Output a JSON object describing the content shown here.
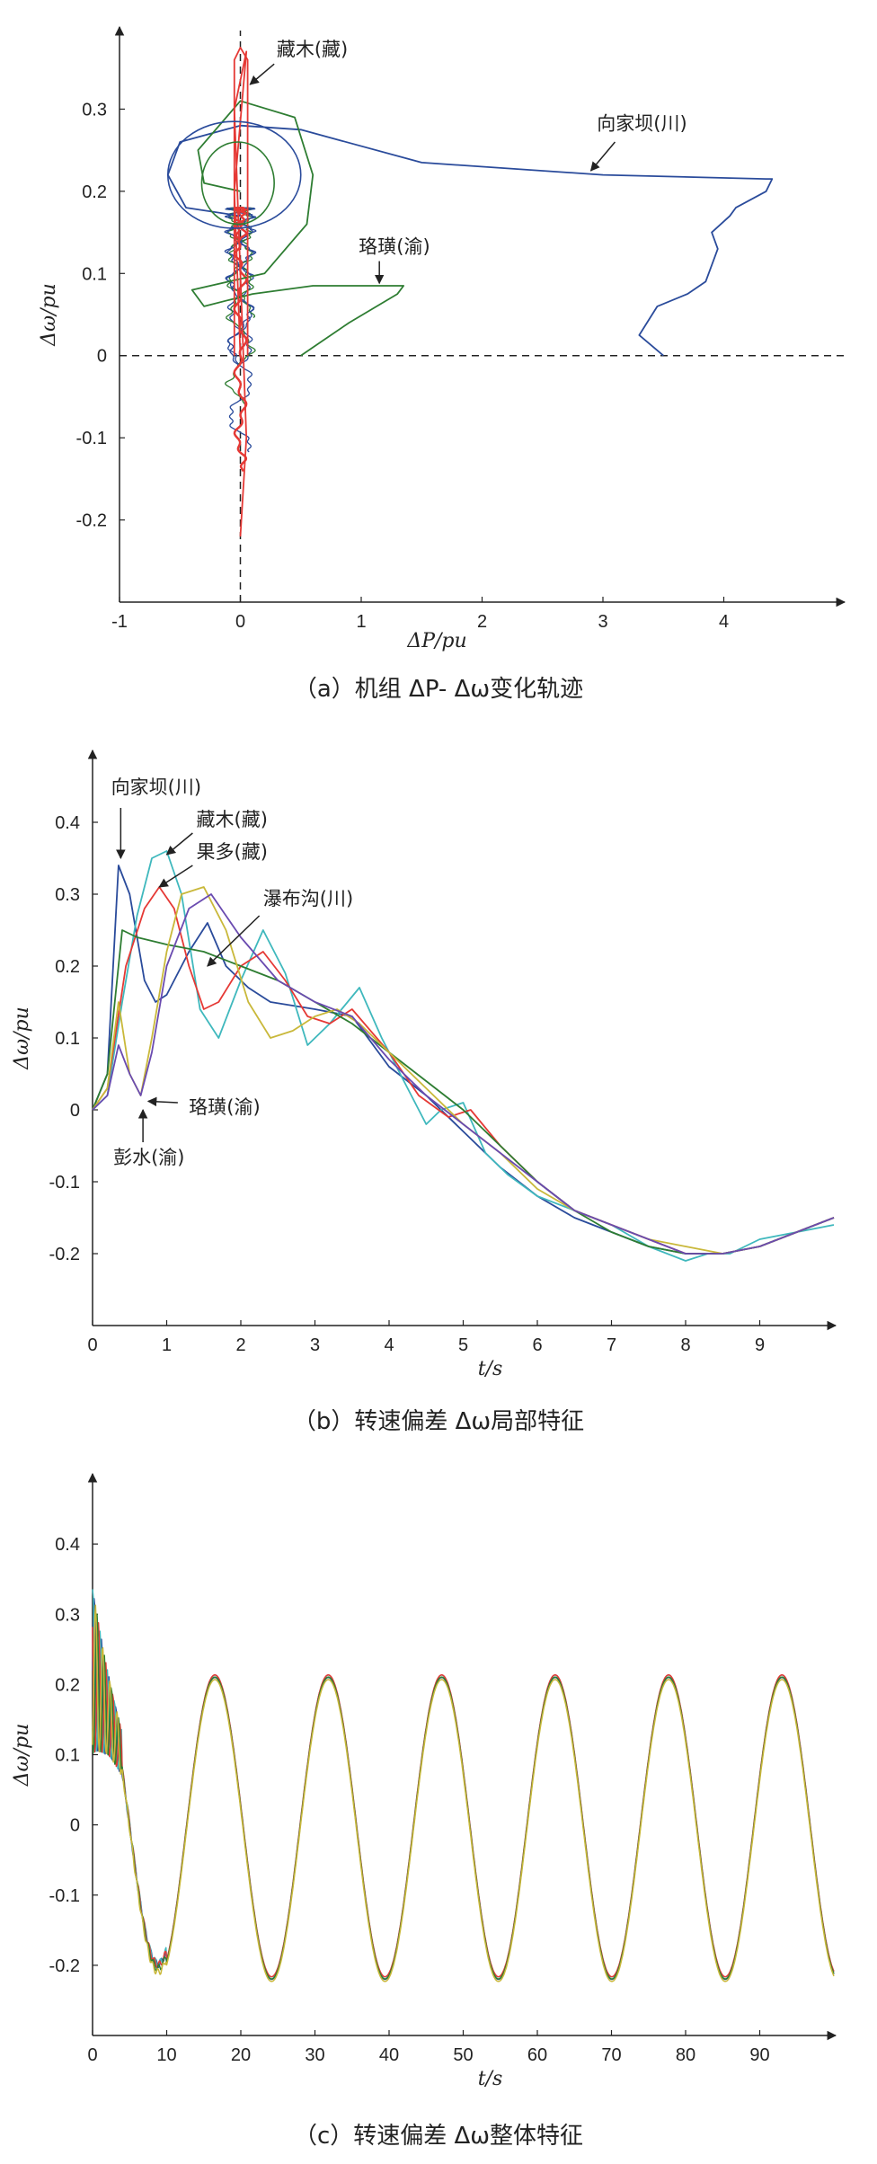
{
  "chart_data": [
    {
      "id": "a",
      "type": "line",
      "caption": "（a）机组 ΔP- Δω变化轨迹",
      "xlabel": "ΔP/pu",
      "ylabel": "Δω/pu",
      "xlim": [
        -1,
        5
      ],
      "ylim": [
        -0.3,
        0.4
      ],
      "xticks": [
        "-1",
        "0",
        "1",
        "2",
        "3",
        "4"
      ],
      "xtick_values": [
        -1,
        0,
        1,
        2,
        3,
        4
      ],
      "yticks": [
        "-0.2",
        "-0.1",
        "0",
        "0.1",
        "0.2",
        "0.3"
      ],
      "ytick_values": [
        -0.2,
        -0.1,
        0,
        0.1,
        0.2,
        0.3
      ],
      "reference_lines": [
        "x=0 dashed",
        "y=0 dashed"
      ],
      "annotations": [
        "藏木(藏)",
        "向家坝(川)",
        "珞璜(渝)"
      ],
      "series": [
        {
          "name": "向家坝(川)",
          "color": "#2a4b9b",
          "x": [
            3.5,
            3.3,
            3.45,
            3.7,
            3.85,
            3.95,
            3.9,
            4.05,
            4.1,
            4.35,
            4.4,
            4.35,
            3.0,
            1.5,
            0.5,
            0.0,
            -0.5,
            -0.6,
            -0.45,
            0.0
          ],
          "y": [
            0.0,
            0.025,
            0.06,
            0.075,
            0.09,
            0.13,
            0.15,
            0.17,
            0.18,
            0.2,
            0.215,
            0.215,
            0.22,
            0.235,
            0.275,
            0.28,
            0.26,
            0.22,
            0.18,
            0.17
          ]
        },
        {
          "name": "珞璜(渝)",
          "color": "#2e7d32",
          "x": [
            0.5,
            0.9,
            1.3,
            1.35,
            1.1,
            0.6,
            0.1,
            -0.3,
            -0.4,
            0.2,
            0.55,
            0.6,
            0.45,
            0.0,
            -0.35,
            -0.3,
            0.0
          ],
          "y": [
            0.0,
            0.04,
            0.075,
            0.085,
            0.085,
            0.085,
            0.075,
            0.06,
            0.08,
            0.1,
            0.16,
            0.22,
            0.29,
            0.31,
            0.25,
            0.21,
            0.2
          ]
        },
        {
          "name": "藏木(藏)",
          "color": "#e53935",
          "x": [
            0.0,
            -0.05,
            0.05,
            -0.05,
            0.05,
            0.0
          ],
          "y": [
            0.0,
            0.2,
            0.37,
            0.3,
            -0.1,
            -0.22
          ]
        }
      ]
    },
    {
      "id": "b",
      "type": "line",
      "caption": "（b）转速偏差 Δω局部特征",
      "xlabel": "t/s",
      "ylabel": "Δω/pu",
      "xlim": [
        0,
        10
      ],
      "ylim": [
        -0.3,
        0.5
      ],
      "xticks": [
        "0",
        "1",
        "2",
        "3",
        "4",
        "5",
        "6",
        "7",
        "8",
        "9"
      ],
      "xtick_values": [
        0,
        1,
        2,
        3,
        4,
        5,
        6,
        7,
        8,
        9
      ],
      "yticks": [
        "-0.2",
        "-0.1",
        "0",
        "0.1",
        "0.2",
        "0.3",
        "0.4"
      ],
      "ytick_values": [
        -0.2,
        -0.1,
        0,
        0.1,
        0.2,
        0.3,
        0.4
      ],
      "annotations": [
        "向家坝(川)",
        "藏木(藏)",
        "果多(藏)",
        "瀑布沟(川)",
        "珞璜(渝)",
        "彭水(渝)"
      ],
      "series": [
        {
          "name": "向家坝(川)",
          "color": "#2a4b9b",
          "x": [
            0,
            0.2,
            0.35,
            0.5,
            0.7,
            0.85,
            1.0,
            1.3,
            1.55,
            1.8,
            2.1,
            2.4,
            3.0,
            3.5,
            4.0,
            4.5,
            5.0,
            5.5,
            6.0,
            6.5,
            7.0,
            7.5,
            8.0,
            8.5,
            9.0,
            9.5,
            10
          ],
          "y": [
            0,
            0.05,
            0.34,
            0.3,
            0.18,
            0.15,
            0.16,
            0.22,
            0.26,
            0.2,
            0.17,
            0.15,
            0.14,
            0.13,
            0.06,
            0.02,
            -0.03,
            -0.08,
            -0.12,
            -0.15,
            -0.17,
            -0.19,
            -0.2,
            -0.2,
            -0.19,
            -0.17,
            -0.15
          ]
        },
        {
          "name": "藏木(藏)",
          "color": "#3fb8bd",
          "x": [
            0,
            0.2,
            0.4,
            0.6,
            0.8,
            1.0,
            1.2,
            1.45,
            1.7,
            2.0,
            2.3,
            2.6,
            2.9,
            3.2,
            3.6,
            3.9,
            4.2,
            4.5,
            4.7,
            5.0,
            5.3,
            5.6,
            6.0,
            6.5,
            7.0,
            7.5,
            8.0,
            8.3,
            8.6,
            9.0,
            9.5,
            10
          ],
          "y": [
            0,
            0.02,
            0.15,
            0.27,
            0.35,
            0.36,
            0.3,
            0.14,
            0.1,
            0.18,
            0.25,
            0.19,
            0.09,
            0.12,
            0.17,
            0.1,
            0.04,
            -0.02,
            0.0,
            0.01,
            -0.06,
            -0.09,
            -0.12,
            -0.14,
            -0.16,
            -0.19,
            -0.21,
            -0.2,
            -0.2,
            -0.18,
            -0.17,
            -0.16
          ]
        },
        {
          "name": "果多(藏)",
          "color": "#e53935",
          "x": [
            0,
            0.2,
            0.45,
            0.7,
            0.9,
            1.1,
            1.3,
            1.5,
            1.7,
            2.0,
            2.3,
            2.6,
            2.9,
            3.2,
            3.5,
            4.0,
            4.4,
            4.8,
            5.1,
            5.5,
            6.0,
            6.5,
            7.0,
            7.5,
            8.0,
            8.5,
            9.0,
            9.5,
            10
          ],
          "y": [
            0,
            0.03,
            0.2,
            0.28,
            0.31,
            0.28,
            0.2,
            0.14,
            0.15,
            0.2,
            0.22,
            0.18,
            0.13,
            0.12,
            0.14,
            0.08,
            0.02,
            -0.01,
            0.0,
            -0.05,
            -0.1,
            -0.14,
            -0.16,
            -0.18,
            -0.2,
            -0.2,
            -0.19,
            -0.17,
            -0.15
          ]
        },
        {
          "name": "瀑布沟(川)",
          "color": "#2e7d32",
          "x": [
            0,
            0.2,
            0.4,
            0.6,
            1.0,
            1.5,
            2.0,
            2.5,
            3.0,
            3.5,
            4.0,
            4.5,
            5.0,
            5.5,
            6.0,
            6.5,
            7.0,
            7.5,
            8.0,
            8.5,
            9.0,
            9.5,
            10
          ],
          "y": [
            0,
            0.05,
            0.25,
            0.24,
            0.23,
            0.22,
            0.2,
            0.18,
            0.15,
            0.12,
            0.08,
            0.04,
            0.0,
            -0.05,
            -0.1,
            -0.14,
            -0.17,
            -0.19,
            -0.2,
            -0.2,
            -0.19,
            -0.17,
            -0.15
          ]
        },
        {
          "name": "珞璜(渝)",
          "color": "#c9b83a",
          "x": [
            0,
            0.2,
            0.35,
            0.5,
            0.65,
            0.8,
            1.0,
            1.2,
            1.5,
            1.8,
            2.1,
            2.4,
            2.7,
            3.0,
            3.3,
            3.6,
            4.0,
            4.5,
            5.0,
            5.5,
            6.0,
            6.5,
            7.0,
            7.5,
            8.0,
            8.5,
            9.0,
            9.5,
            10
          ],
          "y": [
            0,
            0.03,
            0.15,
            0.05,
            0.02,
            0.1,
            0.22,
            0.3,
            0.31,
            0.25,
            0.15,
            0.1,
            0.11,
            0.13,
            0.14,
            0.12,
            0.08,
            0.03,
            -0.02,
            -0.06,
            -0.11,
            -0.14,
            -0.16,
            -0.18,
            -0.19,
            -0.2,
            -0.19,
            -0.17,
            -0.15
          ]
        },
        {
          "name": "彭水(渝)",
          "color": "#6a4bb0",
          "x": [
            0,
            0.2,
            0.35,
            0.5,
            0.65,
            0.8,
            1.0,
            1.3,
            1.6,
            2.0,
            2.5,
            3.0,
            3.5,
            4.0,
            4.5,
            5.0,
            5.5,
            6.0,
            6.5,
            7.0,
            7.5,
            8.0,
            8.5,
            9.0,
            9.5,
            10
          ],
          "y": [
            0,
            0.02,
            0.09,
            0.05,
            0.02,
            0.08,
            0.2,
            0.28,
            0.3,
            0.24,
            0.18,
            0.15,
            0.13,
            0.07,
            0.02,
            -0.02,
            -0.06,
            -0.1,
            -0.14,
            -0.16,
            -0.18,
            -0.2,
            -0.2,
            -0.19,
            -0.17,
            -0.15
          ]
        }
      ]
    },
    {
      "id": "c",
      "type": "line",
      "caption": "（c）转速偏差 Δω整体特征",
      "xlabel": "t/s",
      "ylabel": "Δω/pu",
      "xlim": [
        0,
        100
      ],
      "ylim": [
        -0.3,
        0.5
      ],
      "xticks": [
        "0",
        "10",
        "20",
        "30",
        "40",
        "50",
        "60",
        "70",
        "80",
        "90"
      ],
      "xtick_values": [
        0,
        10,
        20,
        30,
        40,
        50,
        60,
        70,
        80,
        90
      ],
      "yticks": [
        "-0.2",
        "-0.1",
        "0",
        "0.1",
        "0.2",
        "0.3",
        "0.4"
      ],
      "ytick_values": [
        -0.2,
        -0.1,
        0,
        0.1,
        0.2,
        0.3,
        0.4
      ],
      "oscillation": {
        "period_s": 15.3,
        "amplitude": 0.215,
        "first_peak_s": 16.5
      },
      "series": [
        {
          "name": "",
          "color": "#2a4b9b"
        },
        {
          "name": "",
          "color": "#3fb8bd"
        },
        {
          "name": "",
          "color": "#e53935"
        },
        {
          "name": "",
          "color": "#2e7d32"
        },
        {
          "name": "",
          "color": "#c9b83a"
        }
      ]
    }
  ]
}
